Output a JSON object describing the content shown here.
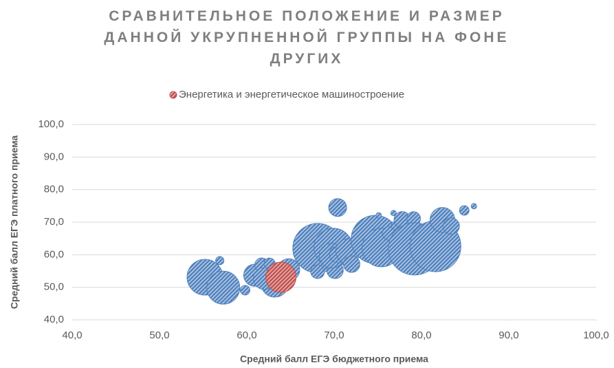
{
  "chart_data": {
    "type": "bubble",
    "title": "СРАВНИТЕЛЬНОЕ ПОЛОЖЕНИЕ И РАЗМЕР ДАННОЙ УКРУПНЕННОЙ ГРУППЫ НА ФОНЕ ДРУГИХ",
    "x_label": "Средний балл ЕГЭ бюджетного приема",
    "y_label": "Средний балл ЕГЭ платного приема",
    "xlim": [
      40,
      100
    ],
    "xticks": [
      {
        "value": 40,
        "label": "40,0"
      },
      {
        "value": 50,
        "label": "50,0"
      },
      {
        "value": 60,
        "label": "60,0"
      },
      {
        "value": 70,
        "label": "70,0"
      },
      {
        "value": 80,
        "label": "80,0"
      },
      {
        "value": 90,
        "label": "90,0"
      },
      {
        "value": 100,
        "label": "100,0"
      }
    ],
    "ylim": [
      40,
      100
    ],
    "yticks": [
      {
        "value": 40,
        "label": "40,0"
      },
      {
        "value": 50,
        "label": "50,0"
      },
      {
        "value": 60,
        "label": "60,0"
      },
      {
        "value": 70,
        "label": "70,0"
      },
      {
        "value": 80,
        "label": "80,0"
      },
      {
        "value": 90,
        "label": "90,0"
      },
      {
        "value": 100,
        "label": "100,0"
      }
    ],
    "grid": true,
    "legend": "top",
    "series": [
      {
        "color": "#4f81bd",
        "x": [
          55.2,
          57.3,
          56.9,
          59.8,
          60.9,
          61.7,
          62.6,
          63.2,
          62.0,
          64.8,
          68.1,
          68.1,
          70.1,
          69.9,
          69.7,
          70.4,
          70.4,
          71.6,
          72.0,
          73.6,
          74.7,
          75.4,
          75.1,
          76.3,
          77.0,
          76.8,
          77.8,
          79.1,
          79.2,
          81.6,
          82.4,
          83.4,
          84.9,
          86.0
        ],
        "values": [
          53.1,
          49.9,
          58.2,
          49.1,
          53.7,
          56.9,
          57.3,
          51.2,
          52.7,
          55.4,
          62.0,
          54.8,
          55.2,
          62.2,
          59.7,
          60.1,
          74.5,
          61.1,
          57.1,
          60.3,
          64.7,
          62.2,
          72.1,
          66.6,
          69.0,
          72.8,
          70.7,
          71.1,
          61.8,
          62.6,
          70.7,
          68.8,
          73.6,
          74.9
        ],
        "sizes": [
          676,
          576,
          36,
          49,
          256,
          100,
          64,
          400,
          256,
          256,
          1296,
          100,
          144,
          784,
          324,
          144,
          169,
          324,
          144,
          64,
          1225,
          784,
          16,
          100,
          36,
          16,
          144,
          100,
          1444,
          1369,
          324,
          144,
          49,
          16
        ]
      },
      {
        "name": "Энергетика и энергетическое машиностроение",
        "color": "#c0504d",
        "x": [
          63.9
        ],
        "values": [
          53.1
        ],
        "sizes": [
          484
        ]
      }
    ]
  }
}
